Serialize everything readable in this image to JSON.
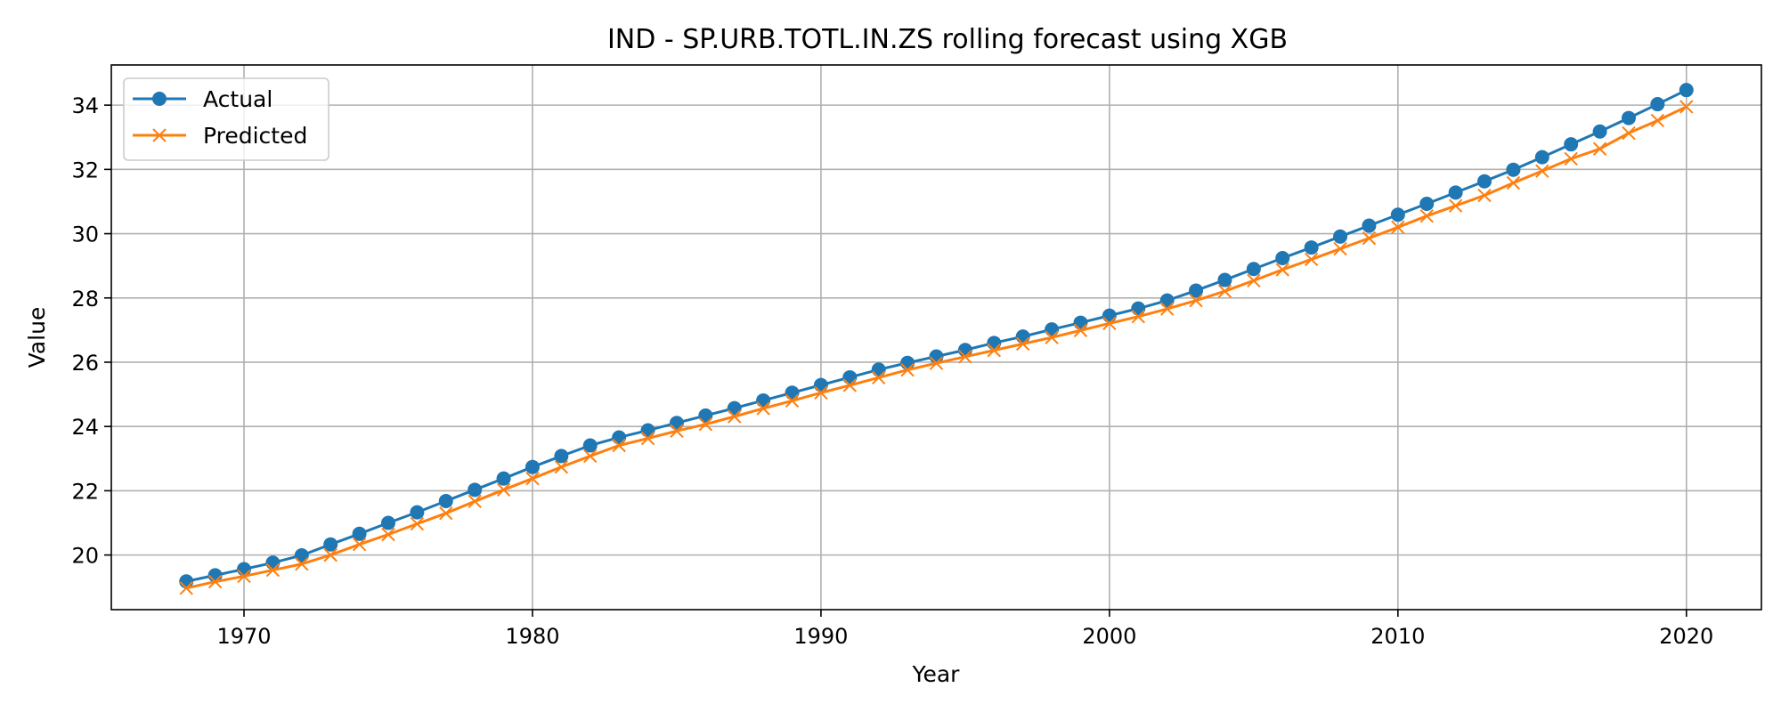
{
  "chart_data": {
    "type": "line",
    "title": "IND - SP.URB.TOTL.IN.ZS rolling forecast using XGB",
    "xlabel": "Year",
    "ylabel": "Value",
    "xlim": [
      1965.4,
      2022.6
    ],
    "ylim": [
      18.3,
      35.25
    ],
    "xticks": [
      1970,
      1980,
      1990,
      2000,
      2010,
      2020
    ],
    "yticks": [
      20,
      22,
      24,
      26,
      28,
      30,
      32,
      34
    ],
    "grid": true,
    "legend_position": "upper-left",
    "x": [
      1968,
      1969,
      1970,
      1971,
      1972,
      1973,
      1974,
      1975,
      1976,
      1977,
      1978,
      1979,
      1980,
      1981,
      1982,
      1983,
      1984,
      1985,
      1986,
      1987,
      1988,
      1989,
      1990,
      1991,
      1992,
      1993,
      1994,
      1995,
      1996,
      1997,
      1998,
      1999,
      2000,
      2001,
      2002,
      2003,
      2004,
      2005,
      2006,
      2007,
      2008,
      2009,
      2010,
      2011,
      2012,
      2013,
      2014,
      2015,
      2016,
      2017,
      2018,
      2019,
      2020
    ],
    "series": [
      {
        "name": "Actual",
        "color": "#1f77b4",
        "marker": "circle",
        "values": [
          19.18,
          19.37,
          19.56,
          19.76,
          19.99,
          20.33,
          20.66,
          21.0,
          21.33,
          21.68,
          22.03,
          22.38,
          22.74,
          23.08,
          23.41,
          23.66,
          23.88,
          24.11,
          24.34,
          24.57,
          24.81,
          25.05,
          25.29,
          25.53,
          25.77,
          25.98,
          26.18,
          26.38,
          26.6,
          26.8,
          27.02,
          27.23,
          27.45,
          27.67,
          27.92,
          28.23,
          28.56,
          28.9,
          29.24,
          29.57,
          29.91,
          30.25,
          30.59,
          30.93,
          31.28,
          31.63,
          31.99,
          32.38,
          32.78,
          33.18,
          33.6,
          34.03,
          34.47
        ]
      },
      {
        "name": "Predicted",
        "color": "#ff7f0e",
        "marker": "x",
        "values": [
          18.97,
          19.17,
          19.34,
          19.53,
          19.72,
          20.0,
          20.33,
          20.64,
          20.97,
          21.3,
          21.67,
          22.03,
          22.38,
          22.74,
          23.08,
          23.41,
          23.63,
          23.86,
          24.07,
          24.31,
          24.56,
          24.8,
          25.05,
          25.28,
          25.52,
          25.76,
          25.97,
          26.17,
          26.37,
          26.57,
          26.77,
          26.99,
          27.21,
          27.42,
          27.66,
          27.92,
          28.21,
          28.54,
          28.88,
          29.2,
          29.53,
          29.86,
          30.2,
          30.55,
          30.87,
          31.19,
          31.58,
          31.95,
          32.33,
          32.64,
          33.13,
          33.52,
          33.95
        ]
      }
    ]
  }
}
